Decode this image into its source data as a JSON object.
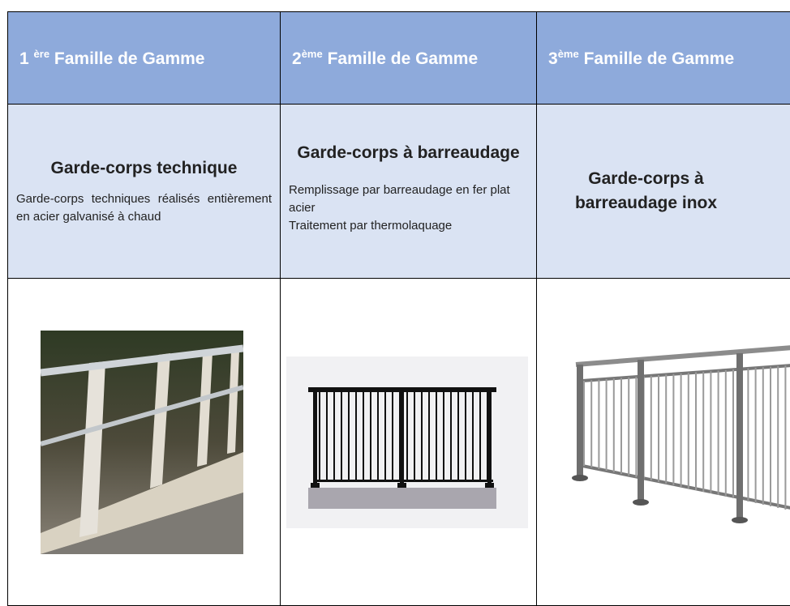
{
  "table": {
    "header": [
      {
        "number": "1",
        "sup": "ère",
        "text": "Famille de Gamme"
      },
      {
        "number": "2",
        "sup": "ème",
        "text": "Famille de Gamme"
      },
      {
        "number": "3",
        "sup": "ème",
        "text": "Famille de Gamme"
      }
    ],
    "rows": [
      [
        {
          "title": "Garde-corps technique",
          "lines": [
            "Garde-corps techniques réalisés entièrement en acier galvanisé à chaud"
          ]
        },
        {
          "title": "Garde-corps à barreaudage",
          "lines": [
            "Remplissage par barreaudage en fer plat acier",
            "Traitement par thermolaquage"
          ]
        },
        {
          "title": "Garde-corps à barreaudage inox",
          "lines": []
        }
      ]
    ]
  }
}
